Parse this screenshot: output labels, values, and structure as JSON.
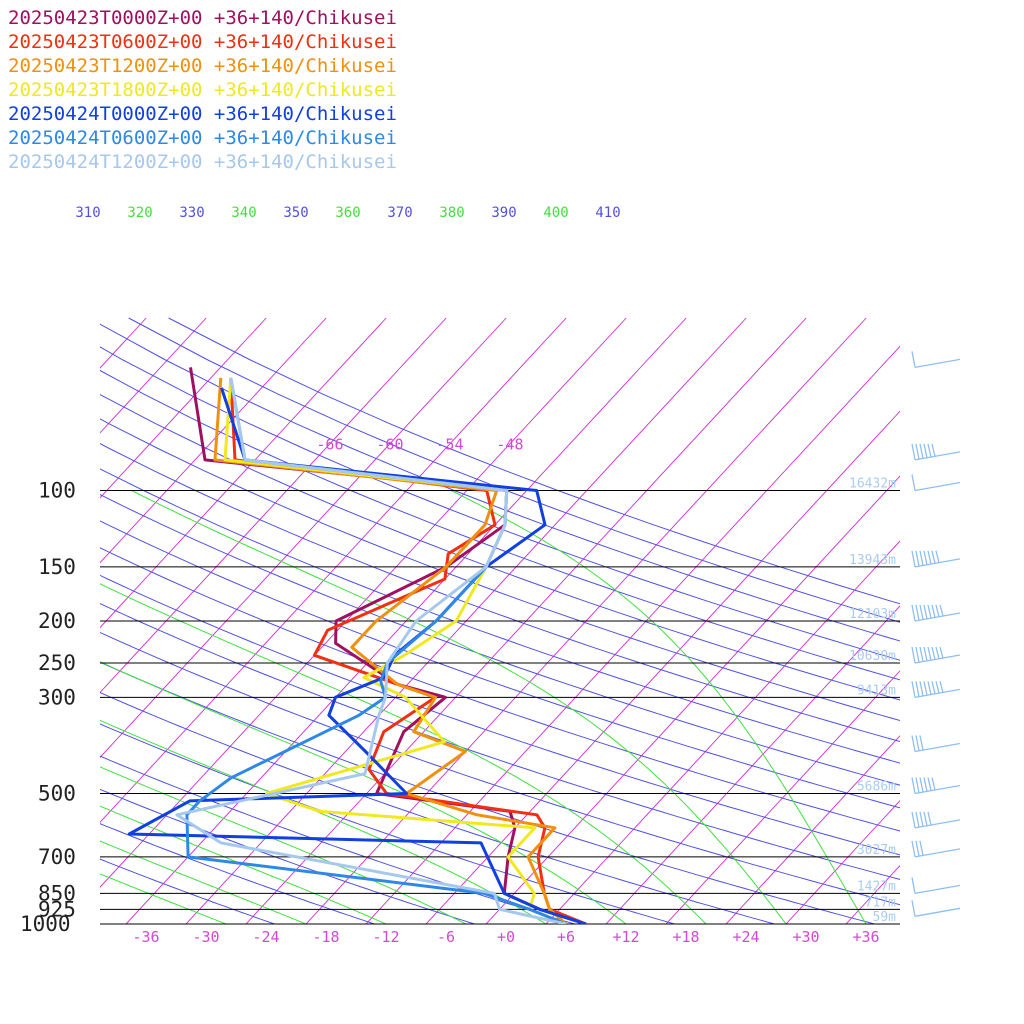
{
  "chart_data": {
    "type": "line",
    "pressure_levels": [
      100,
      150,
      200,
      250,
      300,
      500,
      700,
      850,
      925,
      1000
    ],
    "temperature_ticks": [
      "-36",
      "-30",
      "-24",
      "-18",
      "-12",
      "-6",
      "+0",
      "+6",
      "+12",
      "+18",
      "+24",
      "+30",
      "+36"
    ],
    "isotherm_labels_top": [
      "-66",
      "-60",
      "-54",
      "-48"
    ],
    "theta_labels": [
      "310",
      "320",
      "330",
      "340",
      "350",
      "360",
      "370",
      "380",
      "390",
      "400",
      "410"
    ],
    "height_labels": [
      {
        "p": 100,
        "label": "16432m"
      },
      {
        "p": 150,
        "label": "13943m"
      },
      {
        "p": 200,
        "label": "12103m"
      },
      {
        "p": 250,
        "label": "10630m"
      },
      {
        "p": 300,
        "label": "9413m"
      },
      {
        "p": 500,
        "label": "5686m"
      },
      {
        "p": 700,
        "label": "3027m"
      },
      {
        "p": 850,
        "label": "1427m"
      },
      {
        "p": 925,
        "label": "717m"
      },
      {
        "p": 1000,
        "label": "59m"
      }
    ],
    "series": [
      {
        "name": "20250423T0000Z+00 +36+140/Chikusei",
        "color": "#a01060",
        "points": [
          [
            -83,
            52
          ],
          [
            -73,
            85
          ],
          [
            -40,
            100
          ],
          [
            -37,
            120
          ],
          [
            -39,
            150
          ],
          [
            -45,
            200
          ],
          [
            -43,
            225
          ],
          [
            -33,
            280
          ],
          [
            -27,
            300
          ],
          [
            -28,
            360
          ],
          [
            -25,
            500
          ],
          [
            -10,
            550
          ],
          [
            -8,
            600
          ],
          [
            -6,
            700
          ],
          [
            -3,
            850
          ],
          [
            2,
            925
          ],
          [
            8,
            1000
          ]
        ]
      },
      {
        "name": "20250423T0600Z+00 +36+140/Chikusei",
        "color": "#f03010",
        "points": [
          [
            -78,
            55
          ],
          [
            -70,
            85
          ],
          [
            -42,
            100
          ],
          [
            -38,
            120
          ],
          [
            -40,
            140
          ],
          [
            -38,
            160
          ],
          [
            -45,
            210
          ],
          [
            -44,
            240
          ],
          [
            -33,
            280
          ],
          [
            -28,
            300
          ],
          [
            -30,
            360
          ],
          [
            -28,
            440
          ],
          [
            -24,
            500
          ],
          [
            -7,
            560
          ],
          [
            -5,
            600
          ],
          [
            -3,
            700
          ],
          [
            1,
            850
          ],
          [
            3,
            925
          ],
          [
            8,
            1000
          ]
        ]
      },
      {
        "name": "20250423T1200Z+00 +36+140/Chikusei",
        "color": "#f0900c",
        "points": [
          [
            -79,
            55
          ],
          [
            -72,
            85
          ],
          [
            -41,
            100
          ],
          [
            -39,
            120
          ],
          [
            -39,
            150
          ],
          [
            -41,
            200
          ],
          [
            -41,
            230
          ],
          [
            -33,
            280
          ],
          [
            -28,
            300
          ],
          [
            -27,
            360
          ],
          [
            -20,
            400
          ],
          [
            -22,
            500
          ],
          [
            -13,
            560
          ],
          [
            -4,
            600
          ],
          [
            -4,
            700
          ],
          [
            1,
            850
          ],
          [
            3,
            925
          ],
          [
            6,
            1000
          ]
        ]
      },
      {
        "name": "20250423T1800Z+00 +36+140/Chikusei",
        "color": "#f0e820",
        "points": [
          [
            -78,
            55
          ],
          [
            -71,
            85
          ],
          [
            -40,
            100
          ],
          [
            -37,
            120
          ],
          [
            -35,
            150
          ],
          [
            -33,
            200
          ],
          [
            -35,
            240
          ],
          [
            -37,
            270
          ],
          [
            -31,
            300
          ],
          [
            -23,
            380
          ],
          [
            -36,
            500
          ],
          [
            -29,
            550
          ],
          [
            -6,
            600
          ],
          [
            -6,
            700
          ],
          [
            0,
            850
          ],
          [
            1,
            925
          ],
          [
            6,
            1000
          ]
        ]
      },
      {
        "name": "20250424T0000Z+00 +36+140/Chikusei",
        "color": "#1040e0",
        "points": [
          [
            -78,
            58
          ],
          [
            -69,
            85
          ],
          [
            -37,
            100
          ],
          [
            -33,
            120
          ],
          [
            -35,
            150
          ],
          [
            -35,
            200
          ],
          [
            -36,
            240
          ],
          [
            -35,
            270
          ],
          [
            -38,
            300
          ],
          [
            -37,
            330
          ],
          [
            -30,
            400
          ],
          [
            -22,
            500
          ],
          [
            -43,
            520
          ],
          [
            -46,
            620
          ],
          [
            -10,
            650
          ],
          [
            -3,
            850
          ],
          [
            2,
            925
          ],
          [
            8,
            1000
          ]
        ]
      },
      {
        "name": "20250424T0600Z+00 +36+140/Chikusei",
        "color": "#2e88e6",
        "points": [
          [
            -78,
            55
          ],
          [
            -69,
            85
          ],
          [
            -40,
            100
          ],
          [
            -37,
            120
          ],
          [
            -35,
            150
          ],
          [
            -35,
            200
          ],
          [
            -36,
            250
          ],
          [
            -35,
            275
          ],
          [
            -33,
            300
          ],
          [
            -34,
            330
          ],
          [
            -41,
            460
          ],
          [
            -42,
            520
          ],
          [
            -42,
            560
          ],
          [
            -38,
            700
          ],
          [
            -5,
            850
          ],
          [
            1,
            925
          ],
          [
            6,
            1000
          ]
        ]
      },
      {
        "name": "20250424T1200Z+00 +36+140/Chikusei",
        "color": "#a6c8ee",
        "points": [
          [
            -78,
            55
          ],
          [
            -69,
            85
          ],
          [
            -40,
            100
          ],
          [
            -37,
            120
          ],
          [
            -35,
            150
          ],
          [
            -37,
            200
          ],
          [
            -36,
            250
          ],
          [
            -33,
            300
          ],
          [
            -32,
            330
          ],
          [
            -28,
            450
          ],
          [
            -43,
            560
          ],
          [
            -36,
            650
          ],
          [
            -4,
            850
          ],
          [
            -2,
            925
          ],
          [
            6,
            1000
          ]
        ]
      }
    ],
    "wind_barbs": [
      {
        "p": 52,
        "speed": 10
      },
      {
        "p": 85,
        "speed": 60
      },
      {
        "p": 100,
        "speed": 10
      },
      {
        "p": 150,
        "speed": 70
      },
      {
        "p": 200,
        "speed": 80
      },
      {
        "p": 250,
        "speed": 85
      },
      {
        "p": 300,
        "speed": 75
      },
      {
        "p": 400,
        "speed": 30
      },
      {
        "p": 500,
        "speed": 55
      },
      {
        "p": 600,
        "speed": 45
      },
      {
        "p": 700,
        "speed": 30
      },
      {
        "p": 850,
        "speed": 10
      },
      {
        "p": 960,
        "speed": 10
      }
    ],
    "colors": {
      "isotherm": "#d22ad2",
      "dry_adiabat": "#5050e6",
      "moist_adiabat": "#40e040",
      "isobar": "#000000",
      "wind_barb": "#8fbff0"
    }
  }
}
